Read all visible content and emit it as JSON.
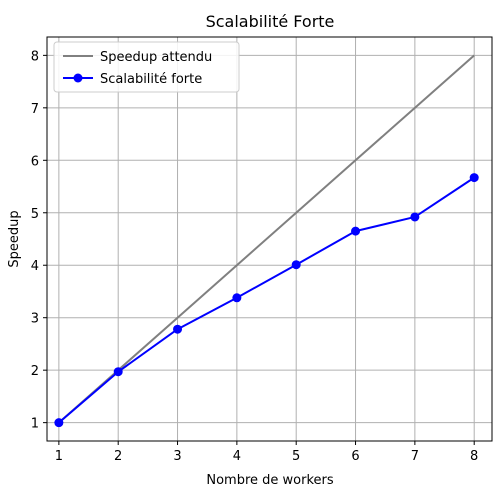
{
  "chart_data": {
    "type": "line",
    "title": "Scalabilité Forte",
    "xlabel": "Nombre de workers",
    "ylabel": "Speedup",
    "x": [
      1,
      2,
      3,
      4,
      5,
      6,
      7,
      8
    ],
    "xlim": [
      0.8,
      8.3
    ],
    "ylim": [
      0.65,
      8.35
    ],
    "xticks": [
      1,
      2,
      3,
      4,
      5,
      6,
      7,
      8
    ],
    "yticks": [
      1,
      2,
      3,
      4,
      5,
      6,
      7,
      8
    ],
    "grid": true,
    "legend_position": "top-left",
    "series": [
      {
        "name": "Speedup attendu",
        "values": [
          1,
          2,
          3,
          4,
          5,
          6,
          7,
          8
        ],
        "color": "#808080",
        "marker": "none"
      },
      {
        "name": "Scalabilité forte",
        "values": [
          1.0,
          1.97,
          2.78,
          3.38,
          4.01,
          4.65,
          4.92,
          5.67
        ],
        "color": "#0000ff",
        "marker": "circle"
      }
    ]
  }
}
